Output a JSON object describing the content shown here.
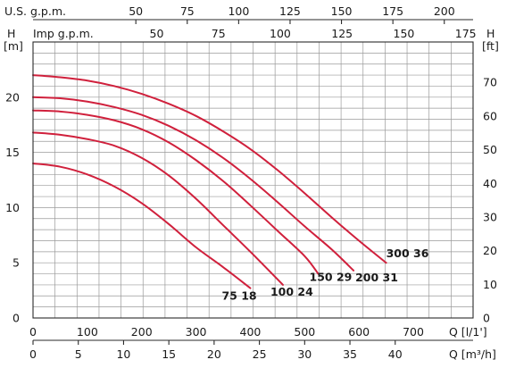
{
  "chart_data": {
    "type": "line",
    "colors": {
      "curve": "#d0203c",
      "grid": "#9a9a9a",
      "text": "#1a1a1a"
    },
    "grid": true,
    "axes": {
      "q_lmin": {
        "unit_label": "Q [l/1']",
        "range": [
          0,
          810
        ],
        "ticks": [
          0,
          100,
          200,
          300,
          400,
          500,
          600,
          700
        ]
      },
      "q_m3h": {
        "unit_label": "Q [m³/h]",
        "range": [
          0,
          48.6
        ],
        "ticks": [
          0,
          5,
          10,
          15,
          20,
          25,
          30,
          35,
          40
        ]
      },
      "us_gpm": {
        "unit_label": "U.S. g.p.m.",
        "range": [
          0,
          214
        ],
        "ticks": [
          50,
          75,
          100,
          125,
          150,
          175,
          200
        ]
      },
      "imp_gpm": {
        "unit_label": "Imp g.p.m.",
        "range": [
          0,
          178
        ],
        "ticks": [
          50,
          75,
          100,
          125,
          150,
          175
        ]
      },
      "h_m": {
        "unit_label_top": "H",
        "unit_label_bottom": "[m]",
        "range": [
          0,
          25
        ],
        "ticks": [
          0,
          5,
          10,
          15,
          20
        ]
      },
      "h_ft": {
        "unit_label_top": "[ft]",
        "unit_label_bottom": "H",
        "range": [
          0,
          82
        ],
        "ticks": [
          0,
          10,
          20,
          30,
          40,
          50,
          60,
          70
        ]
      }
    },
    "series": [
      {
        "name": "75 18",
        "x": [
          0,
          50,
          100,
          150,
          200,
          250,
          300,
          350,
          400
        ],
        "y": [
          14.0,
          13.7,
          13.0,
          11.9,
          10.4,
          8.5,
          6.4,
          4.6,
          2.7
        ]
      },
      {
        "name": "100 24",
        "x": [
          0,
          50,
          100,
          150,
          200,
          250,
          300,
          350,
          400,
          460
        ],
        "y": [
          16.8,
          16.6,
          16.2,
          15.6,
          14.5,
          12.9,
          10.8,
          8.4,
          6.0,
          3.0
        ]
      },
      {
        "name": "150 29",
        "x": [
          0,
          50,
          100,
          150,
          200,
          250,
          300,
          350,
          400,
          450,
          500,
          525
        ],
        "y": [
          18.8,
          18.7,
          18.4,
          17.9,
          17.1,
          15.9,
          14.3,
          12.4,
          10.2,
          7.9,
          5.6,
          4.0
        ]
      },
      {
        "name": "200 31",
        "x": [
          0,
          50,
          100,
          150,
          200,
          250,
          300,
          350,
          400,
          450,
          500,
          550,
          590
        ],
        "y": [
          20.0,
          19.9,
          19.6,
          19.1,
          18.4,
          17.4,
          16.1,
          14.5,
          12.6,
          10.5,
          8.3,
          6.2,
          4.3
        ]
      },
      {
        "name": "300 36",
        "x": [
          0,
          50,
          100,
          150,
          200,
          250,
          300,
          350,
          400,
          450,
          500,
          550,
          600,
          650
        ],
        "y": [
          22.0,
          21.8,
          21.5,
          21.0,
          20.3,
          19.4,
          18.3,
          16.9,
          15.3,
          13.4,
          11.3,
          9.1,
          7.0,
          5.0
        ]
      }
    ]
  }
}
